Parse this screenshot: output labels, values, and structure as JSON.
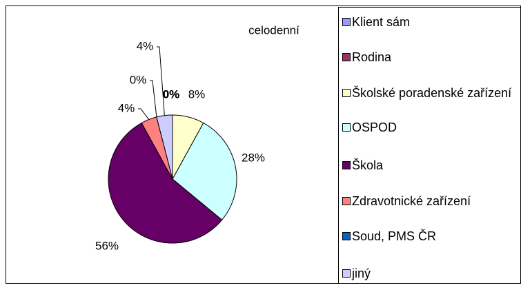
{
  "chart_data": {
    "type": "pie",
    "title": "celodenní",
    "categories": [
      "Klient sám",
      "Rodina",
      "Školské poradenské zařízení",
      "OSPOD",
      "Škola",
      "Zdravotnické zařízení",
      "Soud, PMS ČR",
      "jiný"
    ],
    "values": [
      0,
      0,
      8,
      28,
      56,
      4,
      0,
      4
    ],
    "value_labels": [
      "0%",
      "0%",
      "8%",
      "28%",
      "56%",
      "4%",
      "0%",
      "4%"
    ],
    "colors": [
      "#9999ff",
      "#993366",
      "#ffffcc",
      "#ccffff",
      "#660066",
      "#ff8080",
      "#0066cc",
      "#ccccff"
    ],
    "legend": "right"
  }
}
